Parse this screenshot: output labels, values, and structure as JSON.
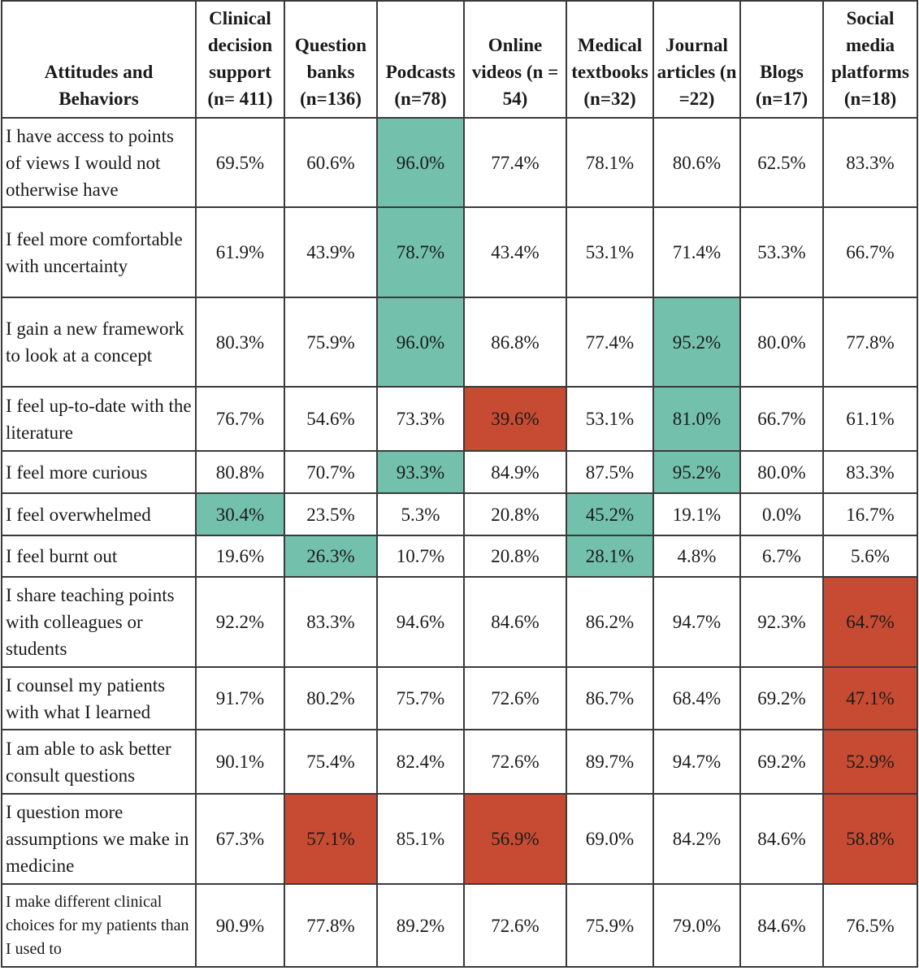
{
  "columns": [
    "Attitudes and Behaviors",
    "Clinical decision support (n= 411)",
    "Question banks (n=136)",
    "Podcasts (n=78)",
    "Online videos (n = 54)",
    "Medical textbooks (n=32)",
    "Journal articles (n =22)",
    "Blogs (n=17)",
    "Social media platforms (n=18)"
  ],
  "highlight_colors": {
    "green": "#73c1ac",
    "red": "#c64b32"
  },
  "rows": [
    {
      "label": "I have access to points of views I would not otherwise have",
      "cells": [
        {
          "v": "69.5%",
          "h": ""
        },
        {
          "v": "60.6%",
          "h": ""
        },
        {
          "v": "96.0%",
          "h": "green"
        },
        {
          "v": "77.4%",
          "h": ""
        },
        {
          "v": "78.1%",
          "h": ""
        },
        {
          "v": "80.6%",
          "h": ""
        },
        {
          "v": "62.5%",
          "h": ""
        },
        {
          "v": "83.3%",
          "h": ""
        }
      ]
    },
    {
      "label": "I feel more comfortable with uncertainty",
      "cells": [
        {
          "v": "61.9%",
          "h": ""
        },
        {
          "v": "43.9%",
          "h": ""
        },
        {
          "v": "78.7%",
          "h": "green"
        },
        {
          "v": "43.4%",
          "h": ""
        },
        {
          "v": "53.1%",
          "h": ""
        },
        {
          "v": "71.4%",
          "h": ""
        },
        {
          "v": "53.3%",
          "h": ""
        },
        {
          "v": "66.7%",
          "h": ""
        }
      ]
    },
    {
      "label": "I gain a new framework to look at a concept",
      "cells": [
        {
          "v": "80.3%",
          "h": ""
        },
        {
          "v": "75.9%",
          "h": ""
        },
        {
          "v": "96.0%",
          "h": "green"
        },
        {
          "v": "86.8%",
          "h": ""
        },
        {
          "v": "77.4%",
          "h": ""
        },
        {
          "v": "95.2%",
          "h": "green"
        },
        {
          "v": "80.0%",
          "h": ""
        },
        {
          "v": "77.8%",
          "h": ""
        }
      ]
    },
    {
      "label": "I feel up-to-date with the literature",
      "cells": [
        {
          "v": "76.7%",
          "h": ""
        },
        {
          "v": "54.6%",
          "h": ""
        },
        {
          "v": "73.3%",
          "h": ""
        },
        {
          "v": "39.6%",
          "h": "red"
        },
        {
          "v": "53.1%",
          "h": ""
        },
        {
          "v": "81.0%",
          "h": "green"
        },
        {
          "v": "66.7%",
          "h": ""
        },
        {
          "v": "61.1%",
          "h": ""
        }
      ]
    },
    {
      "label": "I feel more curious",
      "cells": [
        {
          "v": "80.8%",
          "h": ""
        },
        {
          "v": "70.7%",
          "h": ""
        },
        {
          "v": "93.3%",
          "h": "green"
        },
        {
          "v": "84.9%",
          "h": ""
        },
        {
          "v": "87.5%",
          "h": ""
        },
        {
          "v": "95.2%",
          "h": "green"
        },
        {
          "v": "80.0%",
          "h": ""
        },
        {
          "v": "83.3%",
          "h": ""
        }
      ]
    },
    {
      "label": "I feel overwhelmed",
      "cells": [
        {
          "v": "30.4%",
          "h": "green"
        },
        {
          "v": "23.5%",
          "h": ""
        },
        {
          "v": "5.3%",
          "h": ""
        },
        {
          "v": "20.8%",
          "h": ""
        },
        {
          "v": "45.2%",
          "h": "green"
        },
        {
          "v": "19.1%",
          "h": ""
        },
        {
          "v": "0.0%",
          "h": ""
        },
        {
          "v": "16.7%",
          "h": ""
        }
      ]
    },
    {
      "label": "I feel burnt out",
      "cells": [
        {
          "v": "19.6%",
          "h": ""
        },
        {
          "v": "26.3%",
          "h": "green"
        },
        {
          "v": "10.7%",
          "h": ""
        },
        {
          "v": "20.8%",
          "h": ""
        },
        {
          "v": "28.1%",
          "h": "green"
        },
        {
          "v": "4.8%",
          "h": ""
        },
        {
          "v": "6.7%",
          "h": ""
        },
        {
          "v": "5.6%",
          "h": ""
        }
      ]
    },
    {
      "label": "I share teaching points with colleagues or students",
      "cells": [
        {
          "v": "92.2%",
          "h": ""
        },
        {
          "v": "83.3%",
          "h": ""
        },
        {
          "v": "94.6%",
          "h": ""
        },
        {
          "v": "84.6%",
          "h": ""
        },
        {
          "v": "86.2%",
          "h": ""
        },
        {
          "v": "94.7%",
          "h": ""
        },
        {
          "v": "92.3%",
          "h": ""
        },
        {
          "v": "64.7%",
          "h": "red"
        }
      ]
    },
    {
      "label": "I counsel my patients with what I learned",
      "cells": [
        {
          "v": "91.7%",
          "h": ""
        },
        {
          "v": "80.2%",
          "h": ""
        },
        {
          "v": "75.7%",
          "h": ""
        },
        {
          "v": "72.6%",
          "h": ""
        },
        {
          "v": "86.7%",
          "h": ""
        },
        {
          "v": "68.4%",
          "h": ""
        },
        {
          "v": "69.2%",
          "h": ""
        },
        {
          "v": "47.1%",
          "h": "red"
        }
      ]
    },
    {
      "label": "I am able to ask better consult questions",
      "cells": [
        {
          "v": "90.1%",
          "h": ""
        },
        {
          "v": "75.4%",
          "h": ""
        },
        {
          "v": "82.4%",
          "h": ""
        },
        {
          "v": "72.6%",
          "h": ""
        },
        {
          "v": "89.7%",
          "h": ""
        },
        {
          "v": "94.7%",
          "h": ""
        },
        {
          "v": "69.2%",
          "h": ""
        },
        {
          "v": "52.9%",
          "h": "red"
        }
      ]
    },
    {
      "label": "I question more assumptions we make in medicine",
      "cells": [
        {
          "v": "67.3%",
          "h": ""
        },
        {
          "v": "57.1%",
          "h": "red"
        },
        {
          "v": "85.1%",
          "h": ""
        },
        {
          "v": "56.9%",
          "h": "red"
        },
        {
          "v": "69.0%",
          "h": ""
        },
        {
          "v": "84.2%",
          "h": ""
        },
        {
          "v": "84.6%",
          "h": ""
        },
        {
          "v": "58.8%",
          "h": "red"
        }
      ]
    },
    {
      "label": "I make different clinical choices for my patients than I used to",
      "small": true,
      "cells": [
        {
          "v": "90.9%",
          "h": ""
        },
        {
          "v": "77.8%",
          "h": ""
        },
        {
          "v": "89.2%",
          "h": ""
        },
        {
          "v": "72.6%",
          "h": ""
        },
        {
          "v": "75.9%",
          "h": ""
        },
        {
          "v": "79.0%",
          "h": ""
        },
        {
          "v": "84.6%",
          "h": ""
        },
        {
          "v": "76.5%",
          "h": ""
        }
      ]
    }
  ]
}
